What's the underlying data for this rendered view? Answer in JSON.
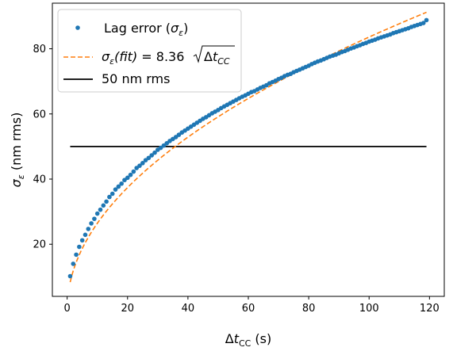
{
  "chart_data": {
    "type": "scatter",
    "x_domain": [
      -4.9,
      124.9
    ],
    "y_domain": [
      4.0,
      94.0
    ],
    "x_ticks": [
      0,
      20,
      40,
      60,
      80,
      100,
      120
    ],
    "y_ticks": [
      20,
      40,
      60,
      80
    ],
    "xlabel": {
      "pre": "Δ",
      "italic": "t",
      "sub": "CC",
      "post": " (s)"
    },
    "ylabel": {
      "sym": "σ",
      "sub": "ε",
      "post": " (nm rms)"
    },
    "legend_position": "upper-left",
    "legend": {
      "lag": {
        "pre": "Lag error (",
        "sym": "σ",
        "sub": "ε",
        "post": ")"
      },
      "fit": {
        "sym": "σ",
        "sub": "ε",
        "mid": "(fit)",
        "eq": " = 8.36 ",
        "sqrt_pre": "Δ",
        "sqrt_italic": "t",
        "sqrt_sub": "CC"
      },
      "threshold": "50 nm rms"
    },
    "series": [
      {
        "name": "Lag error (σ_ε)",
        "kind": "scatter",
        "color": "#1f77b4",
        "x": [
          1,
          2,
          3,
          4,
          5,
          6,
          7,
          8,
          9,
          10,
          11,
          12,
          13,
          14,
          15,
          16,
          17,
          18,
          19,
          20,
          21,
          22,
          23,
          24,
          25,
          26,
          27,
          28,
          29,
          30,
          31,
          32,
          33,
          34,
          35,
          36,
          37,
          38,
          39,
          40,
          41,
          42,
          43,
          44,
          45,
          46,
          47,
          48,
          49,
          50,
          51,
          52,
          53,
          54,
          55,
          56,
          57,
          58,
          59,
          60,
          61,
          62,
          63,
          64,
          65,
          66,
          67,
          68,
          69,
          70,
          71,
          72,
          73,
          74,
          75,
          76,
          77,
          78,
          79,
          80,
          81,
          82,
          83,
          84,
          85,
          86,
          87,
          88,
          89,
          90,
          91,
          92,
          93,
          94,
          95,
          96,
          97,
          98,
          99,
          100,
          101,
          102,
          103,
          104,
          105,
          106,
          107,
          108,
          109,
          110,
          111,
          112,
          113,
          114,
          115,
          116,
          117,
          118,
          119
        ],
        "y": [
          10.2,
          14.0,
          16.8,
          19.2,
          21.2,
          22.9,
          24.7,
          26.4,
          27.8,
          29.4,
          30.6,
          31.9,
          33.1,
          34.5,
          35.5,
          36.8,
          37.7,
          38.6,
          39.7,
          40.4,
          41.3,
          42.3,
          43.4,
          44.1,
          44.9,
          45.8,
          46.5,
          47.3,
          48.1,
          49.0,
          49.6,
          50.3,
          51.0,
          51.7,
          52.3,
          52.9,
          53.6,
          54.3,
          54.9,
          55.5,
          56.1,
          56.7,
          57.3,
          57.9,
          58.5,
          59.0,
          59.6,
          60.2,
          60.7,
          61.2,
          61.8,
          62.3,
          62.8,
          63.3,
          63.8,
          64.3,
          64.8,
          65.3,
          65.7,
          66.2,
          66.7,
          67.0,
          67.5,
          68.0,
          68.4,
          68.8,
          69.4,
          69.8,
          70.2,
          70.7,
          71.1,
          71.6,
          72.0,
          72.3,
          72.8,
          73.2,
          73.6,
          74.0,
          74.4,
          74.8,
          75.3,
          75.7,
          76.1,
          76.4,
          76.8,
          77.2,
          77.6,
          77.9,
          78.2,
          78.6,
          79.0,
          79.3,
          79.7,
          80.1,
          80.4,
          80.8,
          81.1,
          81.5,
          81.8,
          82.2,
          82.5,
          82.8,
          83.2,
          83.5,
          83.8,
          84.1,
          84.4,
          84.8,
          85.1,
          85.4,
          85.7,
          86.0,
          86.3,
          86.7,
          87.0,
          87.3,
          87.6,
          87.9,
          88.8
        ]
      },
      {
        "name": "σ_ε(fit) = 8.36 √Δt_CC",
        "kind": "fit",
        "color": "#ff7f0e",
        "coefficient": 8.36,
        "x_range": [
          1,
          119
        ]
      },
      {
        "name": "50 nm rms",
        "kind": "hline",
        "color": "#000000",
        "y": 50,
        "x_range": [
          1,
          119
        ]
      }
    ]
  }
}
